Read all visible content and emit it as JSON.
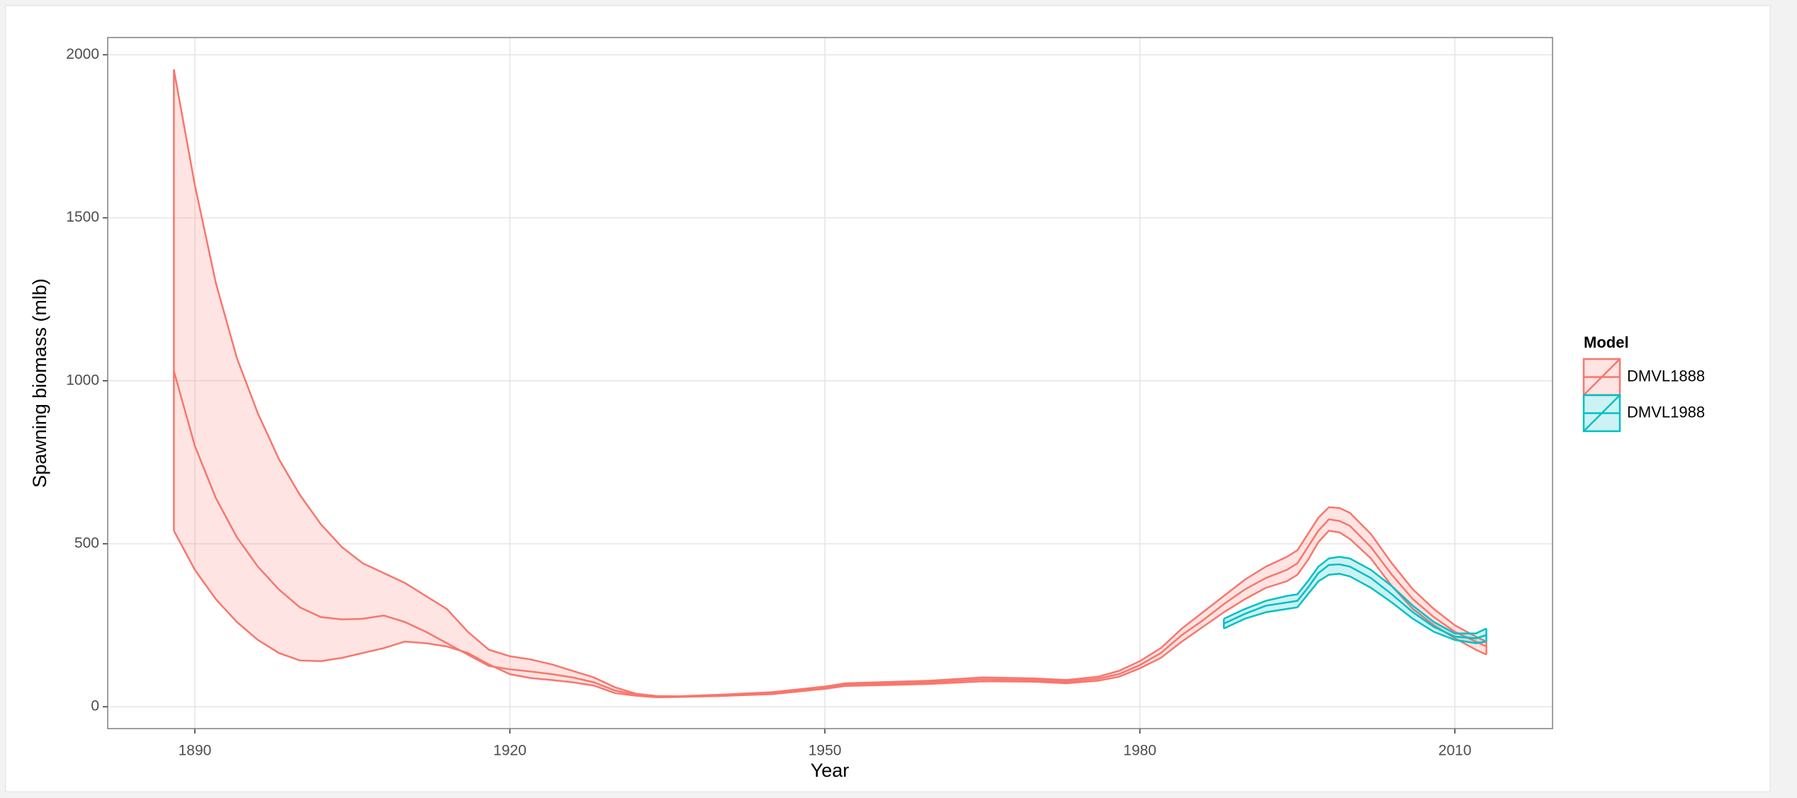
{
  "chart_data": {
    "type": "ribbon-line",
    "x_label": "Year",
    "y_label": "Spawning biomass (mlb)",
    "legend_title": "Model",
    "legend_position": "right",
    "grid": true,
    "xlim": [
      1881.7,
      2019.3
    ],
    "ylim": [
      -67,
      2053
    ],
    "xticks": [
      1890,
      1920,
      1950,
      1980,
      2010
    ],
    "yticks": [
      0,
      500,
      1000,
      1500,
      2000
    ],
    "series": [
      {
        "name": "DMVL1888",
        "color": "#F8766D",
        "x": [
          1888,
          1890,
          1892,
          1894,
          1896,
          1898,
          1900,
          1902,
          1904,
          1906,
          1908,
          1910,
          1912,
          1914,
          1916,
          1918,
          1920,
          1922,
          1924,
          1926,
          1928,
          1930,
          1932,
          1934,
          1936,
          1940,
          1945,
          1950,
          1952,
          1955,
          1960,
          1965,
          1970,
          1973,
          1976,
          1978,
          1980,
          1982,
          1984,
          1986,
          1988,
          1990,
          1992,
          1994,
          1995,
          1996,
          1997,
          1998,
          1999,
          2000,
          2002,
          2004,
          2006,
          2008,
          2010,
          2012,
          2013
        ],
        "upper": [
          1955,
          1600,
          1300,
          1070,
          900,
          760,
          650,
          560,
          490,
          440,
          410,
          380,
          340,
          300,
          230,
          175,
          155,
          145,
          130,
          110,
          90,
          60,
          40,
          33,
          32,
          37,
          45,
          62,
          72,
          75,
          80,
          90,
          87,
          82,
          92,
          110,
          140,
          180,
          240,
          290,
          340,
          390,
          430,
          460,
          480,
          530,
          580,
          612,
          610,
          595,
          530,
          440,
          360,
          300,
          250,
          215,
          200
        ],
        "values": [
          1030,
          800,
          640,
          520,
          430,
          360,
          305,
          275,
          268,
          270,
          280,
          260,
          230,
          195,
          160,
          125,
          115,
          108,
          100,
          90,
          75,
          50,
          37,
          31,
          31,
          35,
          42,
          58,
          68,
          70,
          75,
          84,
          82,
          77,
          86,
          100,
          128,
          165,
          220,
          265,
          315,
          360,
          395,
          420,
          440,
          490,
          540,
          575,
          570,
          555,
          490,
          405,
          330,
          275,
          230,
          200,
          185
        ],
        "lower": [
          540,
          420,
          330,
          260,
          205,
          165,
          142,
          140,
          150,
          165,
          180,
          200,
          195,
          185,
          165,
          130,
          100,
          88,
          82,
          75,
          65,
          42,
          34,
          29,
          30,
          33,
          39,
          55,
          64,
          66,
          70,
          78,
          77,
          72,
          80,
          92,
          118,
          150,
          200,
          245,
          290,
          330,
          365,
          385,
          405,
          450,
          505,
          540,
          535,
          515,
          455,
          370,
          300,
          250,
          210,
          175,
          160
        ]
      },
      {
        "name": "DMVL1988",
        "color": "#00BFC4",
        "x": [
          1988,
          1990,
          1992,
          1994,
          1995,
          1996,
          1997,
          1998,
          1999,
          2000,
          2002,
          2004,
          2006,
          2008,
          2010,
          2012,
          2013
        ],
        "upper": [
          270,
          300,
          325,
          340,
          345,
          385,
          430,
          455,
          460,
          455,
          420,
          370,
          310,
          260,
          225,
          225,
          240
        ],
        "values": [
          255,
          285,
          310,
          320,
          325,
          365,
          410,
          435,
          437,
          430,
          395,
          345,
          290,
          245,
          215,
          210,
          220
        ],
        "lower": [
          240,
          270,
          290,
          300,
          305,
          345,
          385,
          405,
          408,
          400,
          365,
          320,
          270,
          230,
          205,
          195,
          200
        ]
      }
    ]
  }
}
